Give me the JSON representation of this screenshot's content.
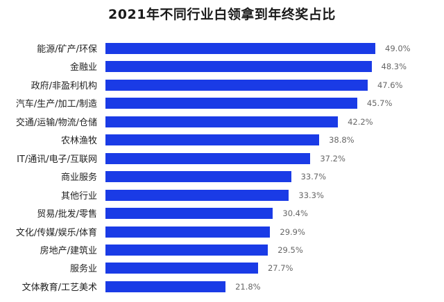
{
  "chart_data": {
    "type": "bar",
    "orientation": "horizontal",
    "title": "2021年不同行业白领拿到年终奖占比",
    "xlabel": "",
    "ylabel": "",
    "grid": false,
    "legend": null,
    "bar_color": "#1a3be6",
    "unit": "%",
    "xlim": [
      0,
      55
    ],
    "categories": [
      "能源/矿产/环保",
      "金融业",
      "政府/非盈利机构",
      "汽车/生产/加工/制造",
      "交通/运输/物流/仓储",
      "农林渔牧",
      "IT/通讯/电子/互联网",
      "商业服务",
      "其他行业",
      "贸易/批发/零售",
      "文化/传媒/娱乐/体育",
      "房地产/建筑业",
      "服务业",
      "文体教育/工艺美术"
    ],
    "values": [
      49.0,
      48.3,
      47.6,
      45.7,
      42.2,
      38.8,
      37.2,
      33.7,
      33.3,
      30.4,
      29.9,
      29.5,
      27.7,
      21.8
    ],
    "value_labels": [
      "49.0%",
      "48.3%",
      "47.6%",
      "45.7%",
      "42.2%",
      "38.8%",
      "37.2%",
      "33.7%",
      "33.3%",
      "30.4%",
      "29.9%",
      "29.5%",
      "27.7%",
      "21.8%"
    ]
  }
}
